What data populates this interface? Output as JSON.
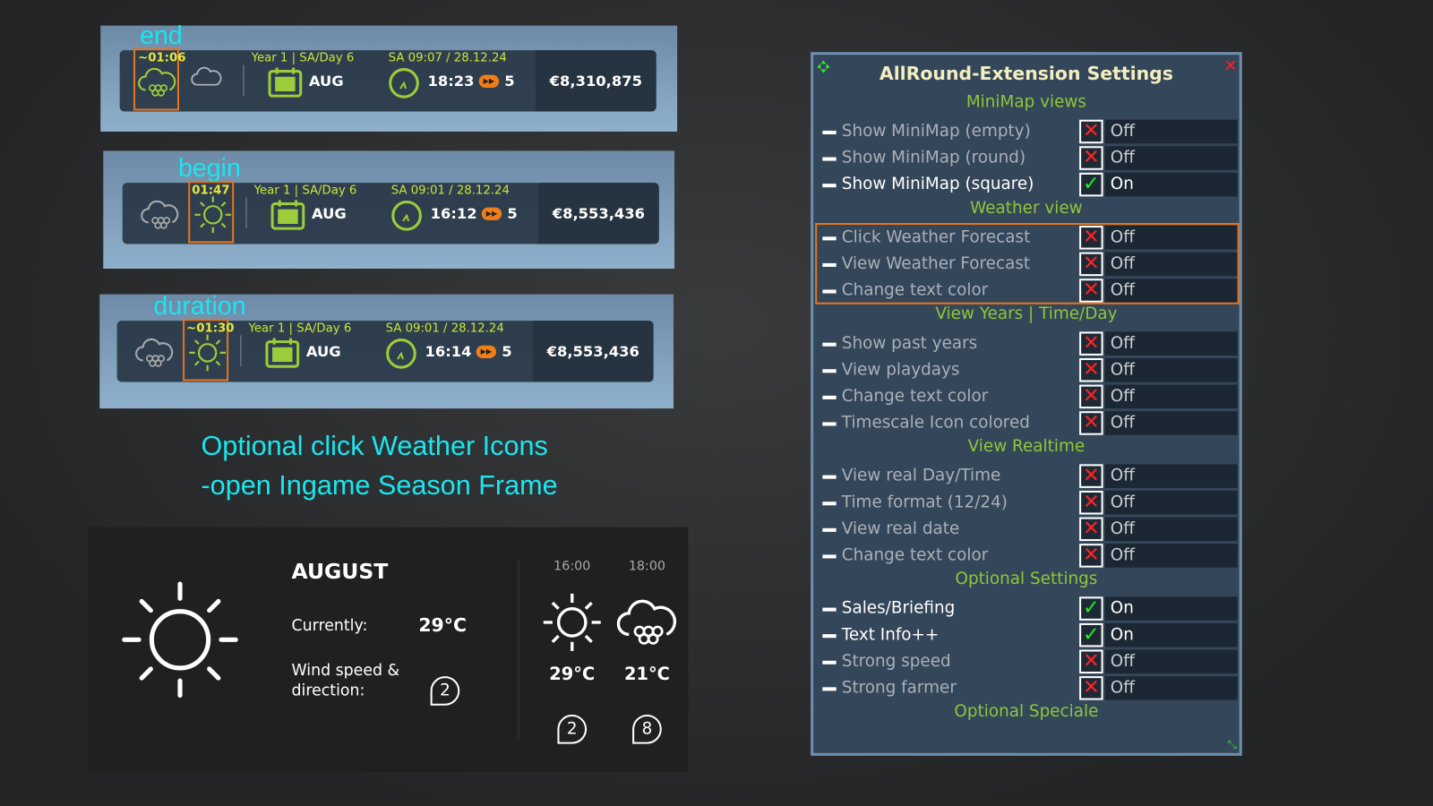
{
  "colors": {
    "accent_green": "#9ccc3a",
    "label_cyan": "#19e6f0",
    "highlight_orange": "#e8731c",
    "off_red": "#ff2222",
    "on_green": "#22ee22"
  },
  "huds": [
    {
      "label": "end",
      "timer": "~01:06",
      "date_line": "Year 1 | SA/Day 6",
      "month": "AUG",
      "realtime": "SA 09:07 / 28.12.24",
      "time": "18:23",
      "speed": "5",
      "money": "€8,310,875",
      "current_icon": "rain-cloud-icon",
      "next_icon": "cloud-icon"
    },
    {
      "label": "begin",
      "timer": "01:47",
      "date_line": "Year 1 | SA/Day 6",
      "month": "AUG",
      "realtime": "SA 09:01 / 28.12.24",
      "time": "16:12",
      "speed": "5",
      "money": "€8,553,436",
      "current_icon": "sun-icon",
      "next_icon": "rain-cloud-icon"
    },
    {
      "label": "duration",
      "timer": "~01:30",
      "date_line": "Year 1 | SA/Day 6",
      "month": "AUG",
      "realtime": "SA 09:01 / 28.12.24",
      "time": "16:14",
      "speed": "5",
      "money": "€8,553,436",
      "current_icon": "sun-icon",
      "next_icon": "rain-cloud-icon"
    }
  ],
  "caption": {
    "line1": "Optional click Weather Icons",
    "line2": "-open Ingame Season Frame"
  },
  "weather": {
    "month": "AUGUST",
    "currently_label": "Currently:",
    "currently_temp": "29°C",
    "wind_label_1": "Wind speed &",
    "wind_label_2": "direction:",
    "wind": "2",
    "forecast": [
      {
        "time": "16:00",
        "icon": "sun-icon",
        "temp": "29°C",
        "wind": "2"
      },
      {
        "time": "18:00",
        "icon": "rain-cloud-icon",
        "temp": "21°C",
        "wind": "8"
      }
    ]
  },
  "settings": {
    "title": "AllRound-Extension Settings",
    "sections": [
      {
        "title": "MiniMap views",
        "items": [
          {
            "label": "Show MiniMap (empty)",
            "value": "Off"
          },
          {
            "label": "Show MiniMap (round)",
            "value": "Off"
          },
          {
            "label": "Show MiniMap (square)",
            "value": "On"
          }
        ]
      },
      {
        "title": "Weather view",
        "highlighted": true,
        "items": [
          {
            "label": "Click Weather Forecast",
            "value": "Off"
          },
          {
            "label": "View Weather Forecast",
            "value": "Off"
          },
          {
            "label": "Change text color",
            "value": "Off"
          }
        ]
      },
      {
        "title": "View Years | Time/Day",
        "items": [
          {
            "label": "Show past years",
            "value": "Off"
          },
          {
            "label": "View playdays",
            "value": "Off"
          },
          {
            "label": "Change text color",
            "value": "Off"
          },
          {
            "label": "Timescale Icon colored",
            "value": "Off"
          }
        ]
      },
      {
        "title": "View Realtime",
        "items": [
          {
            "label": "View real Day/Time",
            "value": "Off"
          },
          {
            "label": "Time format (12/24)",
            "value": "Off"
          },
          {
            "label": "View real date",
            "value": "Off"
          },
          {
            "label": "Change text color",
            "value": "Off"
          }
        ]
      },
      {
        "title": "Optional Settings",
        "items": [
          {
            "label": "Sales/Briefing",
            "value": "On"
          },
          {
            "label": "Text Info++",
            "value": "On"
          },
          {
            "label": "Strong speed",
            "value": "Off"
          },
          {
            "label": "Strong farmer",
            "value": "Off"
          }
        ]
      },
      {
        "title": "Optional Speciale",
        "items": []
      }
    ]
  }
}
